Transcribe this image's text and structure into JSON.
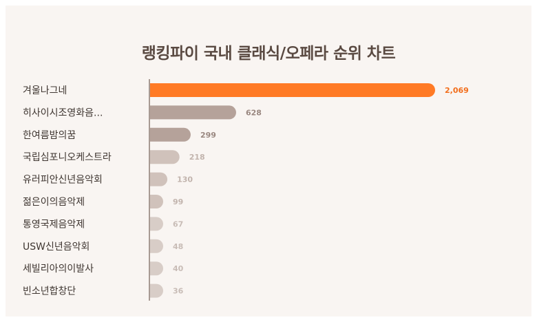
{
  "chart_data": {
    "type": "bar",
    "orientation": "horizontal",
    "title": "랭킹파이 국내 클래식/오페라 순위 차트",
    "categories": [
      "겨울나그네",
      "히사이시조영화음...",
      "한여름밤의꿈",
      "국립심포니오케스트라",
      "유러피안신년음악회",
      "젊은이의음악제",
      "통영국제음악제",
      "USW신년음악회",
      "세빌리아의이발사",
      "빈소년합창단"
    ],
    "values": [
      2069,
      628,
      299,
      218,
      130,
      99,
      67,
      48,
      40,
      36
    ],
    "value_labels": [
      "2,069",
      "628",
      "299",
      "218",
      "130",
      "99",
      "67",
      "48",
      "40",
      "36"
    ],
    "xlim": [
      0,
      2069
    ],
    "colors": {
      "highlight": "#ff7a25",
      "highlight_text": "#f26d1b",
      "bars": [
        "#ff7a25",
        "#b5a29a",
        "#b5a29a",
        "#d0c2bb",
        "#d0c2bb",
        "#d0c2bb",
        "#d8cdc7",
        "#d8cdc7",
        "#d8cdc7",
        "#d8cdc7"
      ],
      "labels": [
        "#f26d1b",
        "#998780",
        "#998780",
        "#c2b4ad",
        "#c2b4ad",
        "#c2b4ad",
        "#c8bcb6",
        "#c8bcb6",
        "#c8bcb6",
        "#c8bcb6"
      ],
      "axis": "#a89a93"
    }
  }
}
